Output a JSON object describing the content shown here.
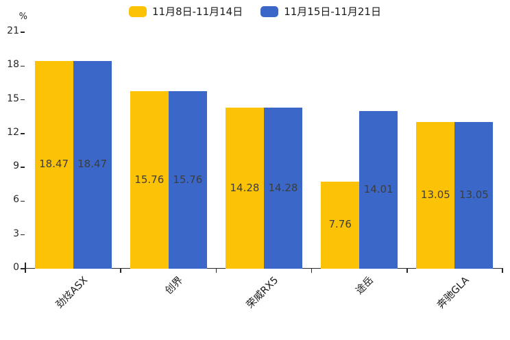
{
  "chart_data": {
    "type": "bar",
    "title": "",
    "xlabel": "",
    "ylabel": "%",
    "categories": [
      "劲炫ASX",
      "创界",
      "荣威RX5",
      "途岳",
      "奔驰GLA"
    ],
    "series": [
      {
        "name": "11月8日-11月14日",
        "color": "#FCC306",
        "values": [
          18.47,
          15.76,
          14.28,
          7.76,
          13.05
        ]
      },
      {
        "name": "11月15日-11月21日",
        "color": "#3A67C8",
        "values": [
          18.47,
          15.76,
          14.28,
          14.01,
          13.05
        ]
      }
    ],
    "yticks": [
      0,
      3,
      6,
      9,
      12,
      15,
      18,
      21
    ],
    "ylim": [
      0,
      21
    ],
    "grid": false,
    "legend_position": "top-center",
    "value_labels": true,
    "value_label_color": "#3d3d3d",
    "axis_color": "#262626",
    "tick_label_color": "#262626",
    "xtick_rotation_deg": 45
  }
}
